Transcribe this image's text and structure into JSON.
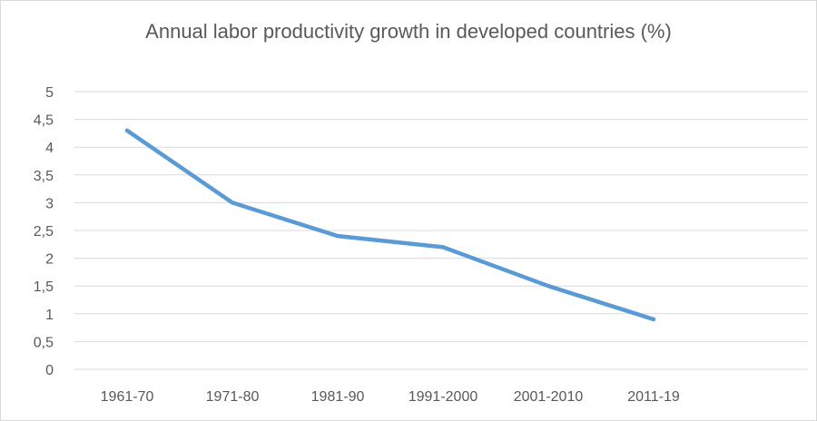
{
  "chart_data": {
    "type": "line",
    "title": "Annual labor productivity growth in developed countries (%)",
    "xlabel": "",
    "ylabel": "",
    "categories": [
      "1961-70",
      "1971-80",
      "1981-90",
      "1991-2000",
      "2001-2010",
      "2011-19"
    ],
    "series": [
      {
        "values": [
          4.3,
          3.0,
          2.4,
          2.2,
          1.5,
          0.9
        ]
      }
    ],
    "ylim": [
      0,
      5
    ],
    "yticks": [
      "0",
      "0,5",
      "1",
      "1,5",
      "2",
      "2,5",
      "3",
      "3,5",
      "4",
      "4,5",
      "5"
    ],
    "grid": true,
    "legend": "none",
    "colors": {
      "line": "#5b9bd5",
      "grid": "#d9d9d9",
      "text": "#595959"
    }
  }
}
